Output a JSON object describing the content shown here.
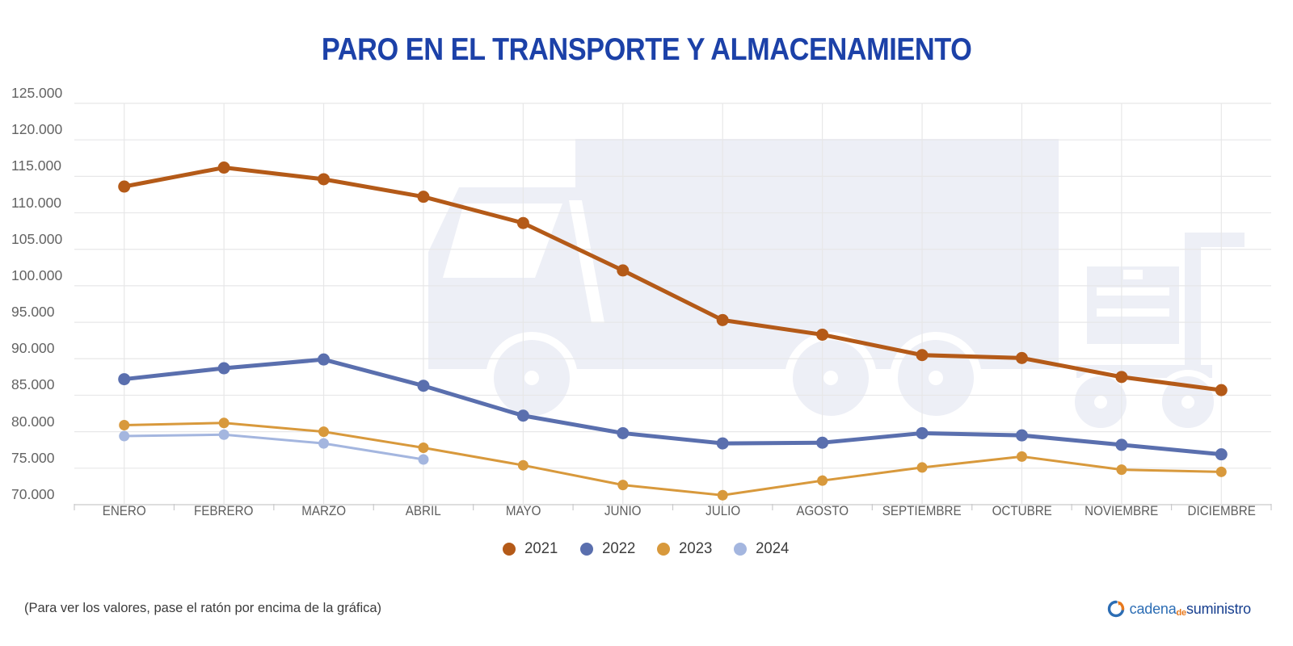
{
  "title": "PARO EN EL TRANSPORTE Y ALMACENAMIENTO",
  "footer_note": "(Para ver los valores, pase el ratón por encima de la gráfica)",
  "logo": {
    "part1": "cadena",
    "part2": "de",
    "part3": "suministro"
  },
  "colors": {
    "title_text": "#1c41a8",
    "axis_text": "#636363",
    "month_text": "#5d5d5d",
    "legend_text": "#3d3d3d",
    "grid_line": "#e7e7e8",
    "axis_line": "#c9c9cb",
    "watermark": "#edeff6",
    "logo_blue": "#2c6db4",
    "logo_orange": "#e8791d",
    "logo_navy": "#173f8f"
  },
  "chart_data": {
    "type": "line",
    "title": "PARO EN EL TRANSPORTE Y ALMACENAMIENTO",
    "grid": true,
    "legend_position": "bottom",
    "categories": [
      "ENERO",
      "FEBRERO",
      "MARZO",
      "ABRIL",
      "MAYO",
      "JUNIO",
      "JULIO",
      "AGOSTO",
      "SEPTIEMBRE",
      "OCTUBRE",
      "NOVIEMBRE",
      "DICIEMBRE"
    ],
    "y_axis": {
      "min": 70000,
      "max": 125000,
      "step": 5000,
      "tick_labels": [
        "125.000",
        "120.000",
        "115.000",
        "110.000",
        "105.000",
        "100.000",
        "95.000",
        "90.000",
        "85.000",
        "80.000",
        "75.000",
        "70.000"
      ]
    },
    "series": [
      {
        "name": "2021",
        "color": "#b45a18",
        "line_width": 5,
        "values": [
          113600,
          116200,
          114600,
          112200,
          108600,
          102100,
          95300,
          93300,
          90500,
          90100,
          87500,
          85700
        ]
      },
      {
        "name": "2022",
        "color": "#5a6fae",
        "line_width": 5,
        "values": [
          87200,
          88700,
          89900,
          86300,
          82200,
          79800,
          78400,
          78500,
          79800,
          79500,
          78200,
          76900
        ]
      },
      {
        "name": "2023",
        "color": "#d8993c",
        "line_width": 3,
        "values": [
          80900,
          81200,
          80000,
          77800,
          75400,
          72700,
          71300,
          73300,
          75100,
          76600,
          74800,
          74500
        ]
      },
      {
        "name": "2024",
        "color": "#a4b6df",
        "line_width": 3,
        "values": [
          79400,
          79600,
          78400,
          76200
        ]
      }
    ]
  }
}
